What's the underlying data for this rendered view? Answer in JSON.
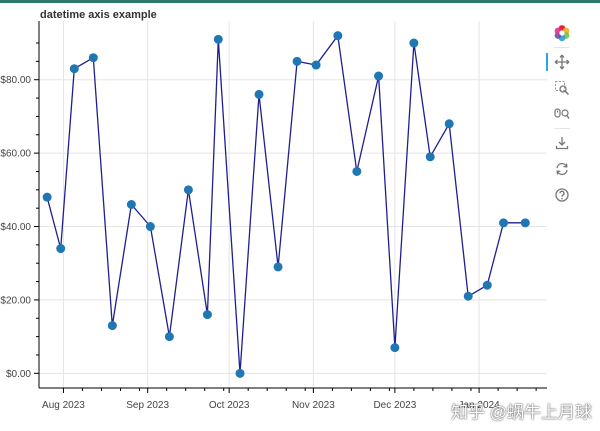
{
  "colors": {
    "line": "#1f1f8f",
    "marker": "#1f77b4",
    "grid": "#e5e5e5",
    "axis": "#000000",
    "tick_label": "#444444",
    "top_strip": "#2c7a6e",
    "toolbar_active": "#26aae1"
  },
  "chart_data": {
    "type": "line",
    "title": "datetime axis example",
    "xlabel": "",
    "ylabel": "",
    "x_axis_type": "datetime",
    "xlim": [
      "2023-07-23",
      "2024-01-26"
    ],
    "ylim": [
      -4,
      96
    ],
    "grid": true,
    "x_tick_labels": [
      {
        "date": "2023-08-01",
        "label": "Aug 2023"
      },
      {
        "date": "2023-09-01",
        "label": "Sep 2023"
      },
      {
        "date": "2023-10-01",
        "label": "Oct 2023"
      },
      {
        "date": "2023-11-01",
        "label": "Nov 2023"
      },
      {
        "date": "2023-12-01",
        "label": "Dec 2023"
      },
      {
        "date": "2024-01-01",
        "label": "Jan 2024"
      }
    ],
    "y_tick_labels": [
      {
        "value": 0,
        "label": "$0.00"
      },
      {
        "value": 20,
        "label": "$20.00"
      },
      {
        "value": 40,
        "label": "$40.00"
      },
      {
        "value": 60,
        "label": "$60.00"
      },
      {
        "value": 80,
        "label": "$80.00"
      }
    ],
    "series": [
      {
        "x": [
          "2023-07-26",
          "2023-07-31",
          "2023-08-05",
          "2023-08-12",
          "2023-08-19",
          "2023-08-26",
          "2023-09-02",
          "2023-09-09",
          "2023-09-16",
          "2023-09-23",
          "2023-09-27",
          "2023-10-05",
          "2023-10-12",
          "2023-10-19",
          "2023-10-26",
          "2023-11-02",
          "2023-11-10",
          "2023-11-17",
          "2023-11-25",
          "2023-12-01",
          "2023-12-08",
          "2023-12-14",
          "2023-12-21",
          "2023-12-28",
          "2024-01-04",
          "2024-01-10",
          "2024-01-18"
        ],
        "y": [
          48,
          34,
          83,
          86,
          13,
          46,
          40,
          10,
          50,
          16,
          91,
          0,
          76,
          29,
          85,
          84,
          92,
          55,
          81,
          7,
          90,
          59,
          68,
          21,
          24,
          41,
          41
        ]
      }
    ]
  },
  "toolbar": {
    "tools": [
      {
        "name": "bokeh-logo-icon",
        "interactable": false
      },
      {
        "name": "pan-tool-icon",
        "interactable": true,
        "active": true
      },
      {
        "name": "box-zoom-tool-icon",
        "interactable": true
      },
      {
        "name": "wheel-zoom-tool-icon",
        "interactable": true
      },
      {
        "name": "save-tool-icon",
        "interactable": true
      },
      {
        "name": "reset-tool-icon",
        "interactable": true
      },
      {
        "name": "help-tool-icon",
        "interactable": true
      }
    ]
  },
  "watermark": {
    "text": "知乎 @蜗牛上月球"
  }
}
